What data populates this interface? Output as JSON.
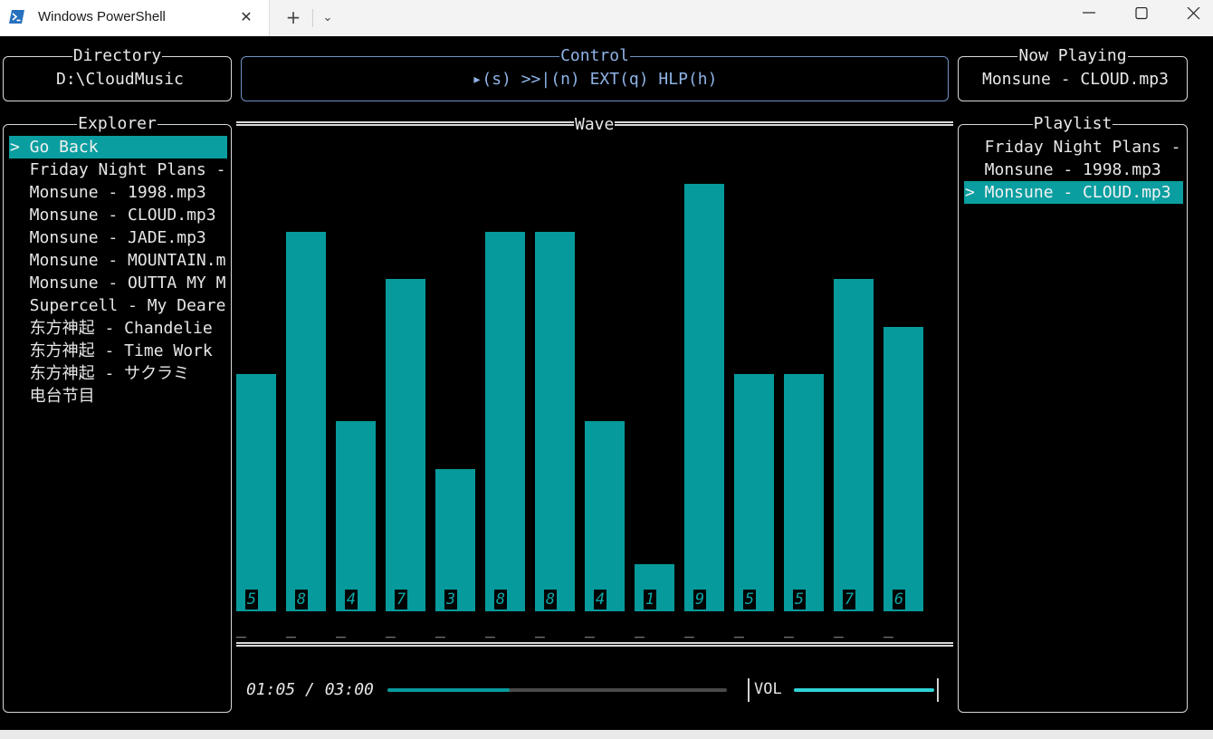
{
  "window": {
    "tab_title": "Windows PowerShell",
    "icon": "powershell-icon",
    "buttons": [
      "minimize-icon",
      "maximize-icon",
      "close-icon"
    ]
  },
  "directory": {
    "title": "Directory",
    "path": "D:\\CloudMusic"
  },
  "control": {
    "title": "Control",
    "keys": "▸(s) >>|(n) EXT(q) HLP(h)"
  },
  "now_playing": {
    "title": "Now Playing",
    "track": "Monsune - CLOUD.mp3"
  },
  "explorer": {
    "title": "Explorer",
    "items": [
      {
        "label": "> Go Back",
        "selected": true
      },
      {
        "label": "  Friday Night Plans -",
        "selected": false
      },
      {
        "label": "  Monsune - 1998.mp3",
        "selected": false
      },
      {
        "label": "  Monsune - CLOUD.mp3",
        "selected": false
      },
      {
        "label": "  Monsune - JADE.mp3",
        "selected": false
      },
      {
        "label": "  Monsune - MOUNTAIN.m",
        "selected": false
      },
      {
        "label": "  Monsune - OUTTA MY M",
        "selected": false
      },
      {
        "label": "  Supercell - My Deare",
        "selected": false
      },
      {
        "label": "  东方神起 - Chandelie",
        "selected": false
      },
      {
        "label": "  东方神起 - Time Work",
        "selected": false
      },
      {
        "label": "  东方神起 - サクラミ",
        "selected": false
      },
      {
        "label": "  电台节目",
        "selected": false
      }
    ]
  },
  "wave": {
    "title": "Wave",
    "bars": [
      5,
      8,
      4,
      7,
      3,
      8,
      8,
      4,
      1,
      9,
      5,
      5,
      7,
      6
    ],
    "tick": "_"
  },
  "playlist": {
    "title": "Playlist",
    "items": [
      {
        "label": "  Friday Night Plans -",
        "selected": false
      },
      {
        "label": "  Monsune - 1998.mp3",
        "selected": false
      },
      {
        "label": "> Monsune - CLOUD.mp3",
        "selected": true
      }
    ]
  },
  "playback": {
    "time": "01:05 / 03:00",
    "progress": 0.36,
    "volume_label": "VOL",
    "volume": 1.0
  },
  "colors": {
    "accent": "#079a9c",
    "control_border": "#6f92c4",
    "volume": "#2fd1d6"
  }
}
